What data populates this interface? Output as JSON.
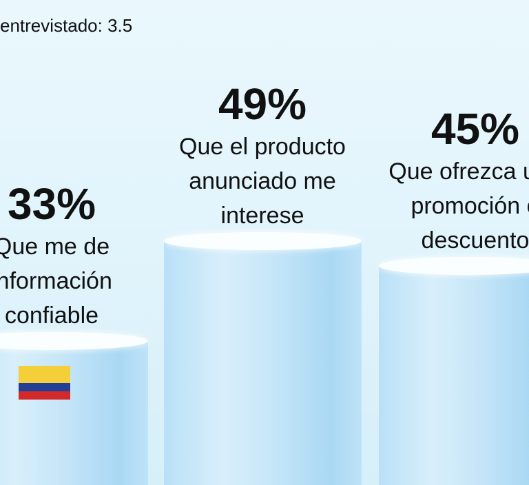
{
  "chart_data": {
    "type": "bar",
    "subtitle": "entrevistado: 3.5",
    "categories": [
      "Que me de información confiable",
      "Que el producto anunciado me interese",
      "Que ofrezca una promoción o descuento"
    ],
    "values": [
      33,
      49,
      45
    ],
    "value_labels": [
      "33%",
      "49%",
      "45%"
    ]
  }
}
